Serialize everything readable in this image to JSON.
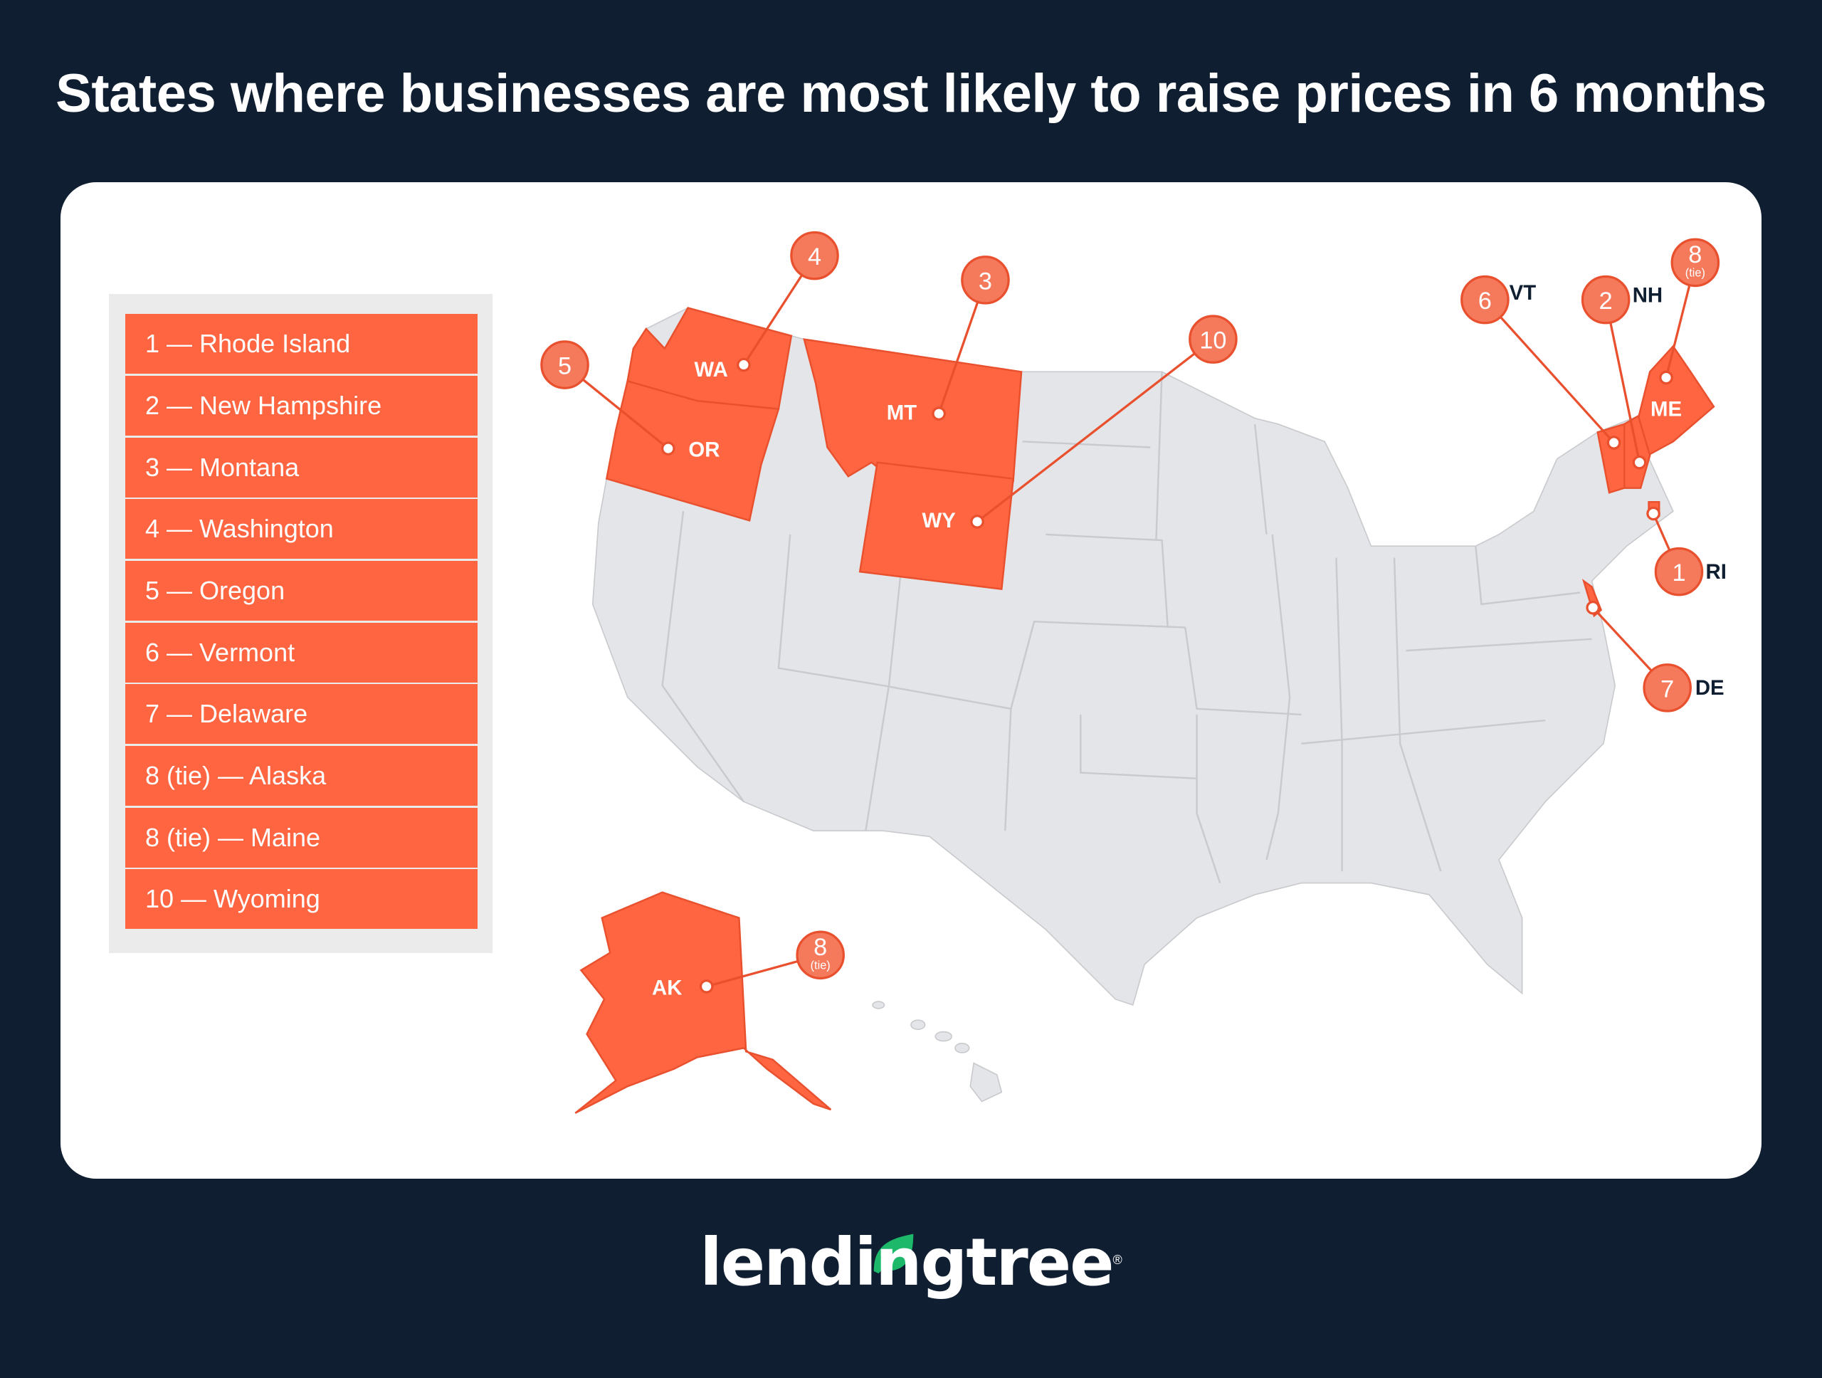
{
  "title": "States where businesses are most likely to raise prices in 6 months",
  "colors": {
    "background": "#0f1f31",
    "highlight": "#fe6540",
    "map_gray": "#e4e5e8",
    "logo_leaf": "#1db86a"
  },
  "legend": {
    "items": [
      {
        "label": "1 — Rhode Island"
      },
      {
        "label": "2 — New Hampshire"
      },
      {
        "label": "3 — Montana"
      },
      {
        "label": "4 — Washington"
      },
      {
        "label": "5 — Oregon"
      },
      {
        "label": "6 — Vermont"
      },
      {
        "label": "7 — Delaware"
      },
      {
        "label": "8 (tie) — Alaska"
      },
      {
        "label": "8 (tie) — Maine"
      },
      {
        "label": "10 — Wyoming"
      }
    ]
  },
  "map": {
    "callouts": [
      {
        "rank": "1",
        "state": "RI"
      },
      {
        "rank": "2",
        "state": "NH"
      },
      {
        "rank": "3",
        "state": "MT"
      },
      {
        "rank": "4",
        "state": "WA"
      },
      {
        "rank": "5",
        "state": "OR"
      },
      {
        "rank": "6",
        "state": "VT"
      },
      {
        "rank": "7",
        "state": "DE"
      },
      {
        "rank": "8",
        "tie": "(tie)",
        "state": "AK"
      },
      {
        "rank": "8",
        "tie": "(tie)",
        "state": "ME"
      },
      {
        "rank": "10",
        "state": "WY"
      }
    ]
  },
  "logo": {
    "text": "lendingtree",
    "reg": "®"
  }
}
